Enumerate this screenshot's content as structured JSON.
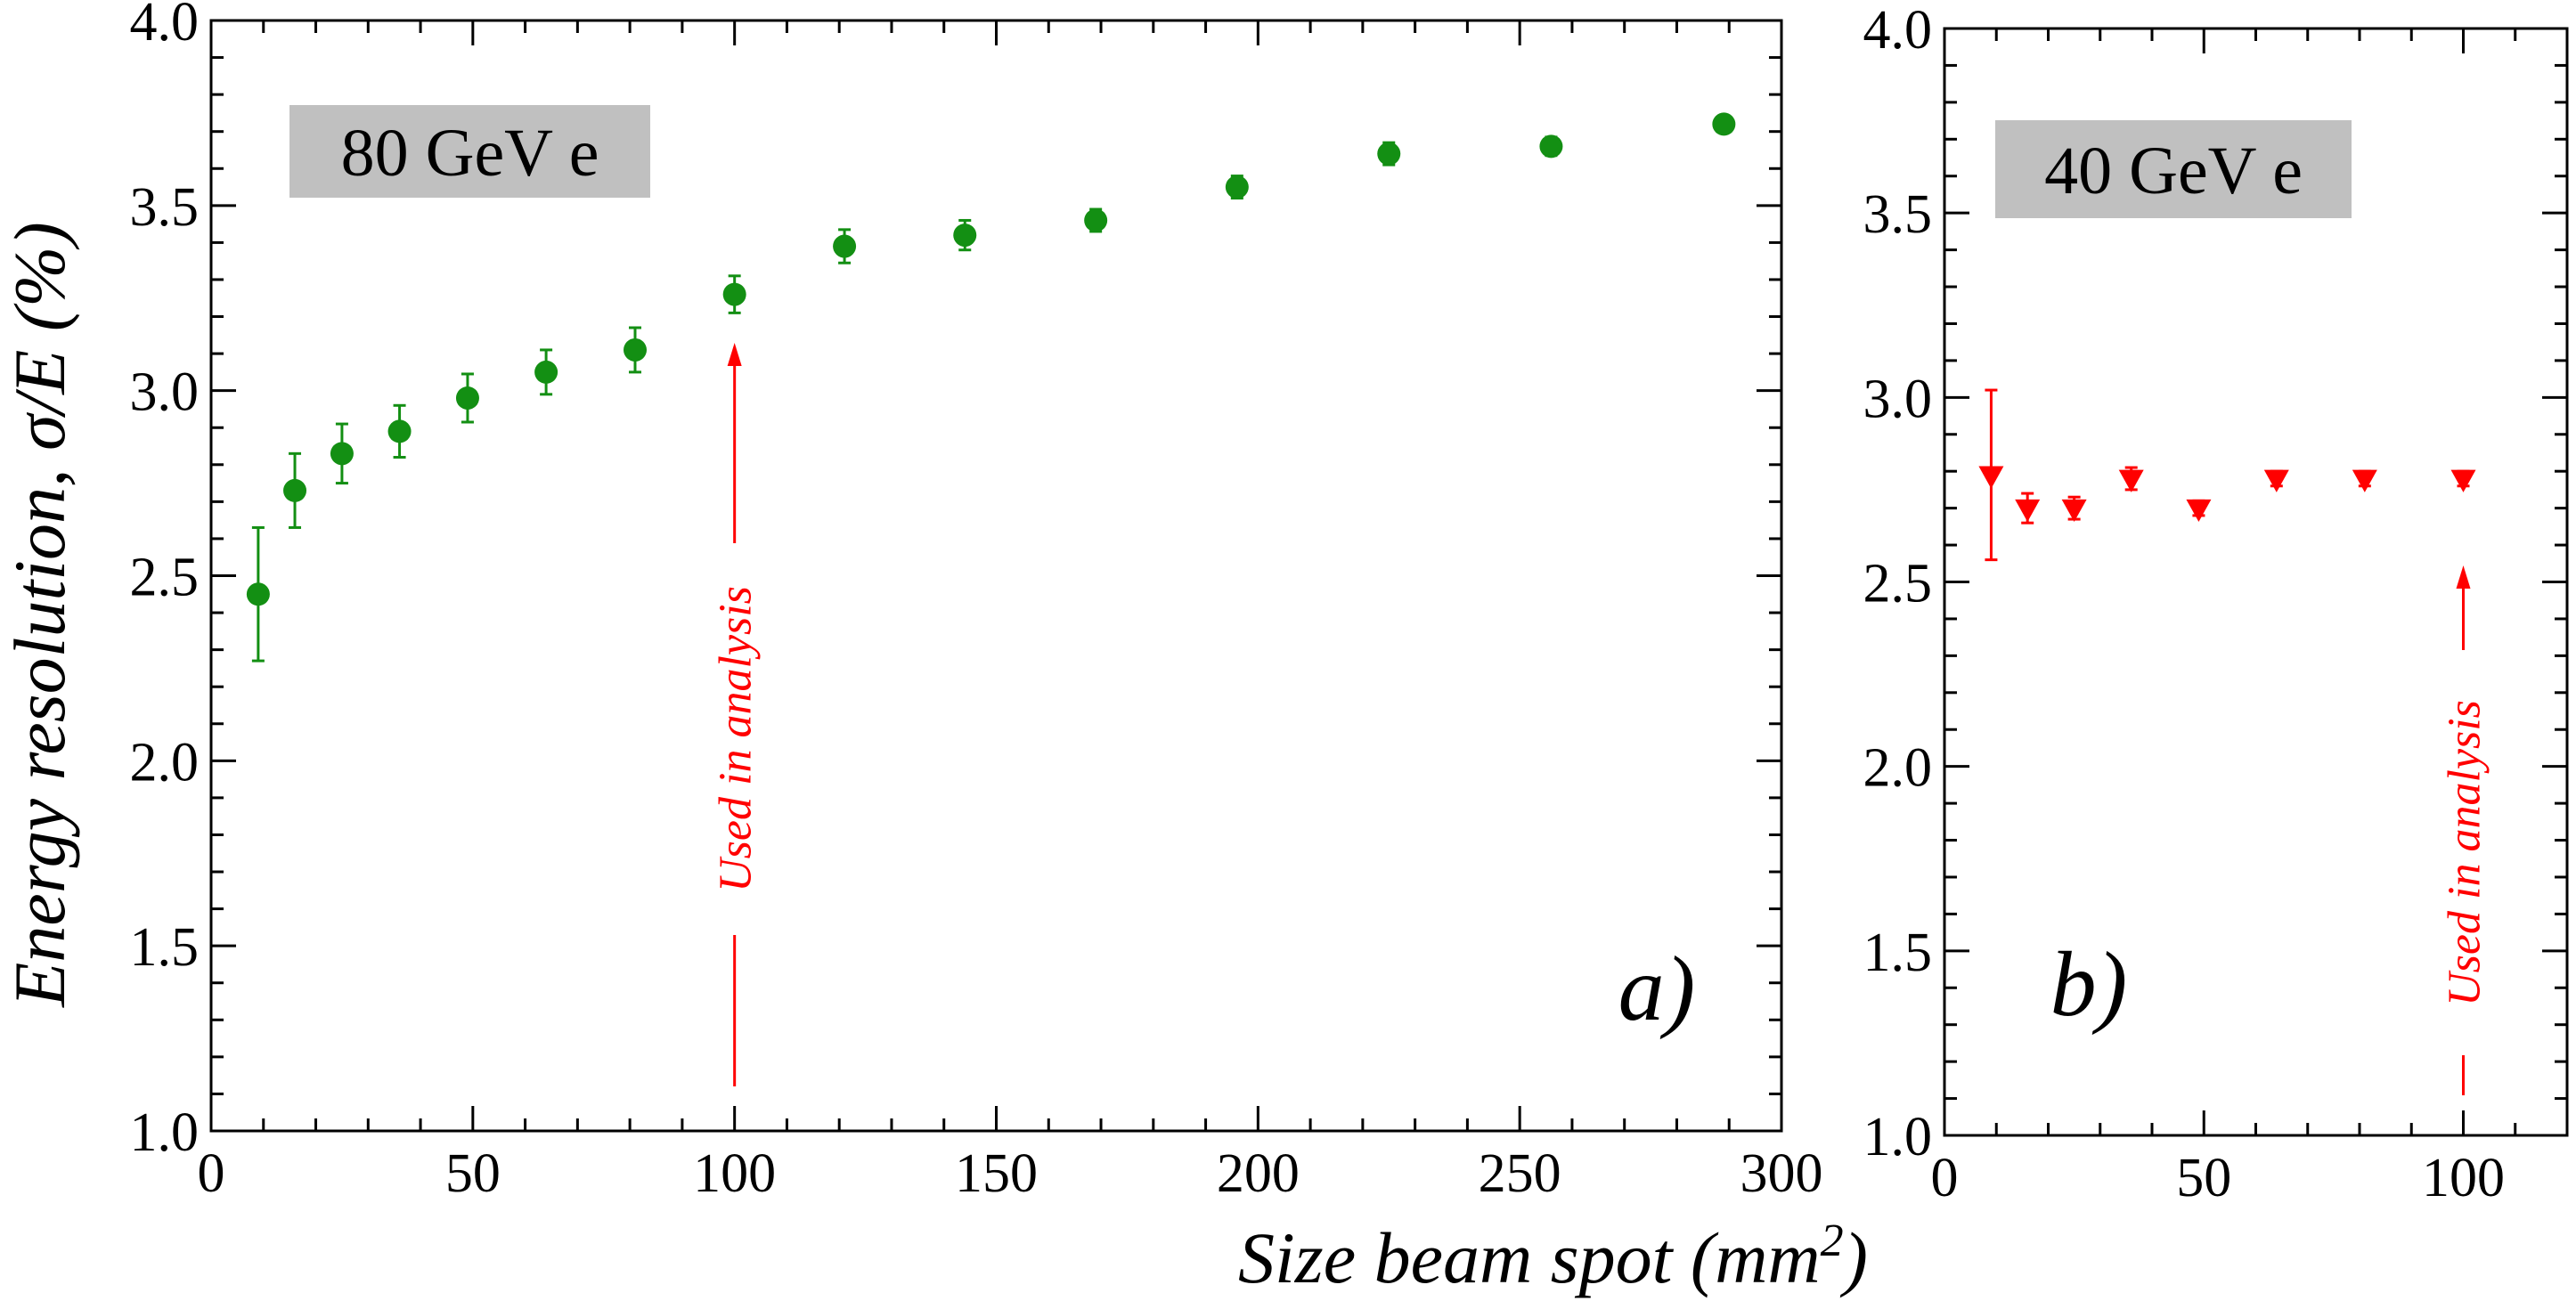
{
  "chart_data": [
    {
      "type": "scatter",
      "panel": "a)",
      "label": "80 GeV e",
      "xlabel": "Size beam spot (mm",
      "xlabel_sup": "2",
      "xlabel_close": ")",
      "ylabel": "Energy resolution, σ/E (%)",
      "xlim": [
        0,
        300
      ],
      "ylim": [
        1.0,
        4.0
      ],
      "xticks": [
        "0",
        "50",
        "100",
        "150",
        "200",
        "250",
        "300"
      ],
      "yticks": [
        "1.0",
        "1.5",
        "2.0",
        "2.5",
        "3.0",
        "3.5",
        "4.0"
      ],
      "marker": "circle",
      "color": "#138f13",
      "annotation": {
        "text": "Used in analysis",
        "x": 100,
        "color": "#ff0000"
      },
      "series": [
        {
          "x": [
            9,
            16,
            25,
            36,
            49,
            64,
            81,
            100,
            121,
            144,
            169,
            196,
            225,
            256,
            289
          ],
          "y": [
            2.45,
            2.73,
            2.83,
            2.89,
            2.98,
            3.05,
            3.11,
            3.26,
            3.39,
            3.42,
            3.46,
            3.55,
            3.64,
            3.66,
            3.72
          ],
          "err": [
            0.18,
            0.1,
            0.08,
            0.07,
            0.065,
            0.06,
            0.06,
            0.05,
            0.045,
            0.04,
            0.03,
            0.03,
            0.03,
            0.025,
            0.02
          ]
        }
      ]
    },
    {
      "type": "scatter",
      "panel": "b)",
      "label": "40 GeV e",
      "xlim": [
        0,
        120
      ],
      "ylim": [
        1.0,
        4.0
      ],
      "xticks": [
        "0",
        "50",
        "100"
      ],
      "yticks": [
        "1.0",
        "1.5",
        "2.0",
        "2.5",
        "3.0",
        "3.5",
        "4.0"
      ],
      "marker": "triangle-down",
      "color": "#ff0000",
      "annotation": {
        "text": "Used in analysis",
        "x": 100,
        "color": "#ff0000"
      },
      "series": [
        {
          "x": [
            9,
            16,
            25,
            36,
            49,
            64,
            81,
            100
          ],
          "y": [
            2.79,
            2.7,
            2.7,
            2.78,
            2.7,
            2.78,
            2.78,
            2.78
          ],
          "err": [
            0.23,
            0.04,
            0.03,
            0.03,
            0.02,
            0.02,
            0.02,
            0.02
          ]
        }
      ]
    }
  ]
}
